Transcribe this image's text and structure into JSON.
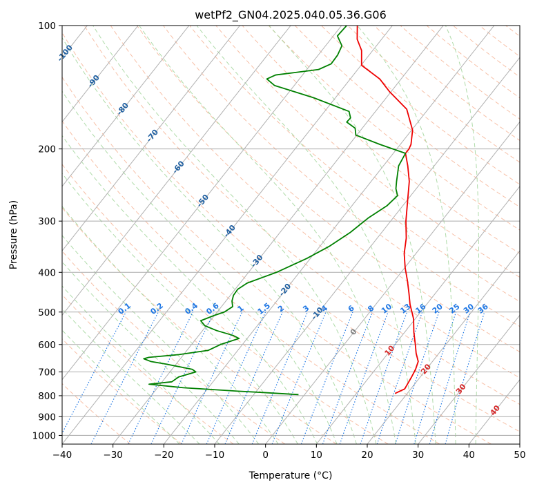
{
  "chart_data": {
    "type": "line",
    "title": "wetPf2_GN04.2025.040.05.36.G06",
    "xlabel": "Temperature (°C)",
    "ylabel": "Pressure (hPa)",
    "xlim": [
      -40,
      50
    ],
    "ylim": [
      1050,
      100
    ],
    "y_scale": "log",
    "x_ticks": [
      -40,
      -30,
      -20,
      -10,
      0,
      10,
      20,
      30,
      40,
      50
    ],
    "x_tick_labels": [
      "−40",
      "−30",
      "−20",
      "−10",
      "0",
      "10",
      "20",
      "30",
      "40",
      "50"
    ],
    "y_ticks": [
      100,
      200,
      300,
      400,
      500,
      600,
      700,
      800,
      900,
      1000
    ],
    "y_tick_labels": [
      "100",
      "200",
      "300",
      "400",
      "500",
      "600",
      "700",
      "800",
      "900",
      "1000"
    ],
    "grid": true,
    "colors": {
      "temperature": "#ee0000",
      "dewpoint": "#008000",
      "isobar": "#aaaaaa",
      "isotherm": "#b0b0b0",
      "dry_adiabat": "#f4a582",
      "moist_adiabat": "#a6d7a0",
      "mixing_ratio": "#1f77e4",
      "isotherm_label": "#1f5fa0",
      "isotherm_label_warm": "#d62728"
    },
    "series": [
      {
        "role": "temperature",
        "points": [
          [
            17.6,
            790
          ],
          [
            18.8,
            770
          ],
          [
            18.6,
            750
          ],
          [
            18.3,
            720
          ],
          [
            17.9,
            690
          ],
          [
            17.2,
            660
          ],
          [
            15.5,
            630
          ],
          [
            14.0,
            600
          ],
          [
            11.8,
            560
          ],
          [
            9.7,
            520
          ],
          [
            8.3,
            500
          ],
          [
            6.8,
            480
          ],
          [
            4.8,
            450
          ],
          [
            2.6,
            420
          ],
          [
            0.1,
            390
          ],
          [
            -2.3,
            360
          ],
          [
            -4.3,
            330
          ],
          [
            -7.0,
            300
          ],
          [
            -9.6,
            270
          ],
          [
            -12.5,
            240
          ],
          [
            -15.2,
            220
          ],
          [
            -17.6,
            205
          ],
          [
            -17.6,
            200
          ],
          [
            -17.9,
            195
          ],
          [
            -19.8,
            180
          ],
          [
            -24.2,
            160
          ],
          [
            -30.3,
            145
          ],
          [
            -34.2,
            135
          ],
          [
            -39.9,
            125
          ],
          [
            -42.2,
            115
          ],
          [
            -44.8,
            108
          ],
          [
            -46.9,
            100
          ]
        ]
      },
      {
        "role": "dewpoint",
        "points": [
          [
            -1.2,
            795
          ],
          [
            -5.2,
            790
          ],
          [
            -9.1,
            785
          ],
          [
            -13.6,
            780
          ],
          [
            -24.9,
            765
          ],
          [
            -32.2,
            750
          ],
          [
            -28.1,
            740
          ],
          [
            -27.5,
            720
          ],
          [
            -24.9,
            700
          ],
          [
            -26.0,
            690
          ],
          [
            -31.9,
            670
          ],
          [
            -35.4,
            660
          ],
          [
            -37.2,
            650
          ],
          [
            -36.4,
            645
          ],
          [
            -30.9,
            635
          ],
          [
            -25.8,
            620
          ],
          [
            -24.3,
            600
          ],
          [
            -21.6,
            580
          ],
          [
            -23.3,
            570
          ],
          [
            -27.2,
            555
          ],
          [
            -30.3,
            540
          ],
          [
            -31.9,
            525
          ],
          [
            -30.1,
            510
          ],
          [
            -28.6,
            500
          ],
          [
            -27.8,
            485
          ],
          [
            -28.8,
            470
          ],
          [
            -29.4,
            455
          ],
          [
            -29.5,
            440
          ],
          [
            -28.6,
            425
          ],
          [
            -24.5,
            400
          ],
          [
            -20.7,
            370
          ],
          [
            -18.1,
            345
          ],
          [
            -16.2,
            320
          ],
          [
            -14.9,
            295
          ],
          [
            -13.1,
            275
          ],
          [
            -12.6,
            260
          ],
          [
            -14.0,
            250
          ],
          [
            -15.0,
            240
          ],
          [
            -17.0,
            220
          ],
          [
            -17.6,
            205
          ],
          [
            -24.0,
            195
          ],
          [
            -30.2,
            185
          ],
          [
            -31.4,
            178
          ],
          [
            -34.0,
            172
          ],
          [
            -33.9,
            168
          ],
          [
            -35.2,
            162
          ],
          [
            -44.3,
            150
          ],
          [
            -53.9,
            140
          ],
          [
            -56.4,
            135
          ],
          [
            -55.3,
            132
          ],
          [
            -51.5,
            130
          ],
          [
            -47.7,
            128
          ],
          [
            -46.1,
            124
          ],
          [
            -46.2,
            118
          ],
          [
            -46.8,
            112
          ],
          [
            -49.2,
            106
          ],
          [
            -49.0,
            100
          ]
        ]
      }
    ],
    "isotherm_labels": [
      "-100",
      "-90",
      "-80",
      "-70",
      "-60",
      "-50",
      "-40",
      "-30",
      "-20",
      "-10",
      "0",
      "10",
      "20",
      "30",
      "40"
    ],
    "mixing_ratio_labels": [
      "0.1",
      "0.2",
      "0.4",
      "0.6",
      "1",
      "1.5",
      "2",
      "3",
      "4",
      "6",
      "8",
      "10",
      "13",
      "16",
      "20",
      "25",
      "30",
      "36"
    ]
  }
}
